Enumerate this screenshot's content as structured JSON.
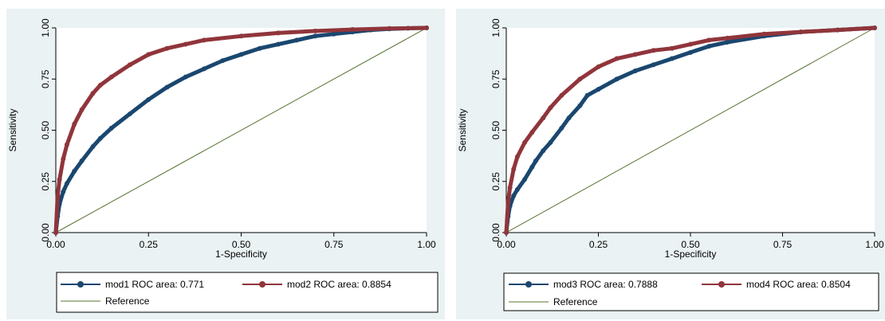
{
  "colors": {
    "panel_background": "#eaf2f3",
    "plot_background": "#ffffff",
    "series_navy": "#1a476f",
    "series_maroon": "#90353b",
    "reference_line": "#55752f"
  },
  "chart_data": [
    {
      "type": "line",
      "title": "",
      "xlabel": "1-Specificity",
      "ylabel": "Sensitivity",
      "xlim": [
        0,
        1
      ],
      "ylim": [
        0,
        1
      ],
      "xticks": [
        "0.00",
        "0.25",
        "0.50",
        "0.75",
        "1.00"
      ],
      "yticks": [
        "0.00",
        "0.25",
        "0.50",
        "0.75",
        "1.00"
      ],
      "grid": false,
      "legend_position": "bottom",
      "series": [
        {
          "name": "mod1 ROC area: 0.771",
          "color": "#1a476f",
          "marker": "circle",
          "x": [
            0,
            0.005,
            0.01,
            0.02,
            0.03,
            0.05,
            0.07,
            0.1,
            0.12,
            0.15,
            0.2,
            0.25,
            0.3,
            0.35,
            0.4,
            0.45,
            0.5,
            0.55,
            0.6,
            0.65,
            0.7,
            0.75,
            0.8,
            0.85,
            0.9,
            0.95,
            1.0
          ],
          "y": [
            0,
            0.08,
            0.14,
            0.2,
            0.24,
            0.3,
            0.35,
            0.42,
            0.46,
            0.51,
            0.58,
            0.65,
            0.71,
            0.76,
            0.8,
            0.84,
            0.87,
            0.9,
            0.92,
            0.94,
            0.96,
            0.97,
            0.98,
            0.99,
            0.995,
            0.998,
            1.0
          ]
        },
        {
          "name": "mod2 ROC area: 0.8854",
          "color": "#90353b",
          "marker": "circle",
          "x": [
            0,
            0.005,
            0.01,
            0.02,
            0.03,
            0.05,
            0.07,
            0.1,
            0.12,
            0.15,
            0.2,
            0.25,
            0.3,
            0.35,
            0.4,
            0.5,
            0.6,
            0.7,
            0.8,
            0.9,
            1.0
          ],
          "y": [
            0,
            0.18,
            0.26,
            0.36,
            0.43,
            0.53,
            0.6,
            0.68,
            0.72,
            0.76,
            0.82,
            0.87,
            0.9,
            0.92,
            0.94,
            0.96,
            0.975,
            0.985,
            0.992,
            0.997,
            1.0
          ]
        },
        {
          "name": "Reference",
          "color": "#55752f",
          "marker": "none",
          "x": [
            0,
            1
          ],
          "y": [
            0,
            1
          ]
        }
      ]
    },
    {
      "type": "line",
      "title": "",
      "xlabel": "1-Specificity",
      "ylabel": "Sensitivity",
      "xlim": [
        0,
        1
      ],
      "ylim": [
        0,
        1
      ],
      "xticks": [
        "0.00",
        "0.25",
        "0.50",
        "0.75",
        "1.00"
      ],
      "yticks": [
        "0.00",
        "0.25",
        "0.50",
        "0.75",
        "1.00"
      ],
      "grid": false,
      "legend_position": "bottom",
      "series": [
        {
          "name": "mod3 ROC area: 0.7888",
          "color": "#1a476f",
          "marker": "circle",
          "x": [
            0,
            0.005,
            0.01,
            0.02,
            0.03,
            0.05,
            0.07,
            0.08,
            0.1,
            0.12,
            0.15,
            0.17,
            0.2,
            0.22,
            0.25,
            0.3,
            0.35,
            0.4,
            0.45,
            0.5,
            0.55,
            0.6,
            0.7,
            0.8,
            0.9,
            1.0
          ],
          "y": [
            0,
            0.08,
            0.13,
            0.18,
            0.21,
            0.26,
            0.32,
            0.35,
            0.4,
            0.44,
            0.51,
            0.56,
            0.62,
            0.67,
            0.7,
            0.75,
            0.79,
            0.82,
            0.85,
            0.88,
            0.91,
            0.93,
            0.96,
            0.98,
            0.99,
            1.0
          ]
        },
        {
          "name": "mod4 ROC area: 0.8504",
          "color": "#90353b",
          "marker": "circle",
          "x": [
            0,
            0.005,
            0.01,
            0.02,
            0.03,
            0.05,
            0.07,
            0.1,
            0.12,
            0.15,
            0.2,
            0.25,
            0.3,
            0.35,
            0.4,
            0.45,
            0.5,
            0.55,
            0.6,
            0.7,
            0.8,
            0.9,
            1.0
          ],
          "y": [
            0,
            0.15,
            0.22,
            0.31,
            0.37,
            0.44,
            0.49,
            0.56,
            0.61,
            0.67,
            0.75,
            0.81,
            0.85,
            0.87,
            0.89,
            0.9,
            0.92,
            0.94,
            0.95,
            0.97,
            0.98,
            0.99,
            1.0
          ]
        },
        {
          "name": "Reference",
          "color": "#55752f",
          "marker": "none",
          "x": [
            0,
            1
          ],
          "y": [
            0,
            1
          ]
        }
      ]
    }
  ]
}
